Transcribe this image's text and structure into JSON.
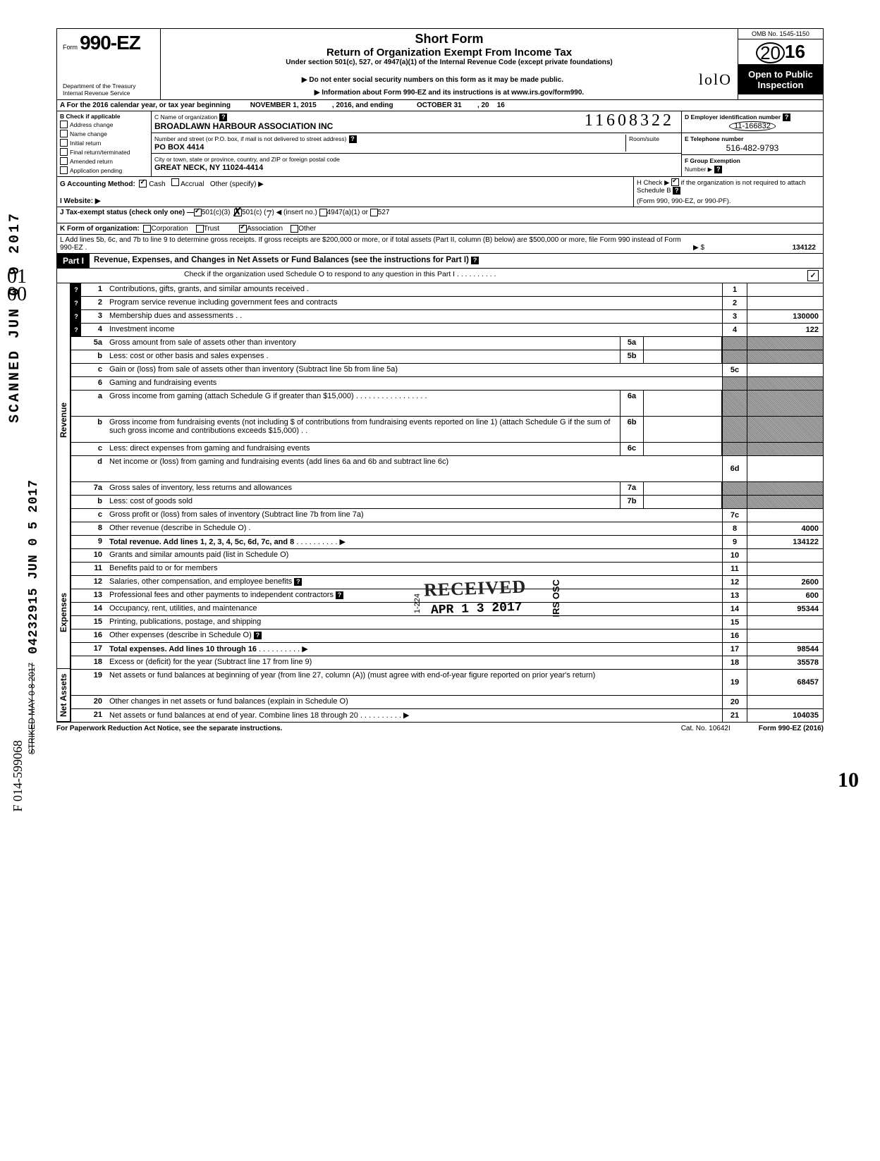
{
  "header": {
    "form_prefix": "Form",
    "form_number": "990-EZ",
    "dept1": "Department of the Treasury",
    "dept2": "Internal Revenue Service",
    "title_main": "Short Form",
    "title_sub": "Return of Organization Exempt From Income Tax",
    "section_note": "Under section 501(c), 527, or 4947(a)(1) of the Internal Revenue Code (except private foundations)",
    "ssn_note": "▶ Do not enter social security numbers on this form as it may be made public.",
    "info_note": "▶ Information about Form 990-EZ and its instructions is at www.irs.gov/form990.",
    "hand_initials": "lolO",
    "omb": "OMB No. 1545-1150",
    "year_prefix": "20",
    "year_suffix": "16",
    "open_public1": "Open to Public",
    "open_public2": "Inspection"
  },
  "row_a": {
    "prefix": "A  For the 2016 calendar year, or tax year beginning",
    "begin": "NOVEMBER 1, 2015",
    "mid": ", 2016, and ending",
    "end_month": "OCTOBER 31",
    "end_mid": ", 20",
    "end_year": "16"
  },
  "col_b": {
    "header": "B  Check if applicable",
    "opts": [
      "Address change",
      "Name change",
      "Initial return",
      "Final return/terminated",
      "Amended return",
      "Application pending"
    ]
  },
  "col_c": {
    "label_name": "C  Name of organization",
    "name": "BROADLAWN HARBOUR ASSOCIATION INC",
    "hand_num": "11608322",
    "label_addr": "Number and street (or P.O. box, if mail is not delivered to street address)",
    "room_label": "Room/suite",
    "addr": "PO BOX 4414",
    "label_city": "City or town, state or province, country, and ZIP or foreign postal code",
    "city": "GREAT NECK, NY 11024-4414"
  },
  "col_d": {
    "label": "D Employer identification number",
    "ein": "11-166832"
  },
  "col_e": {
    "label": "E Telephone number",
    "phone": "516-482-9793"
  },
  "col_f": {
    "label": "F Group Exemption",
    "label2": "Number ▶"
  },
  "row_g": {
    "label": "G  Accounting Method:",
    "cash": "Cash",
    "accrual": "Accrual",
    "other": "Other (specify) ▶"
  },
  "row_h": {
    "text1": "H Check ▶",
    "text2": "if the organization is not required to attach Schedule B",
    "text3": "(Form 990, 990-EZ, or 990-PF)."
  },
  "row_i": {
    "label": "I  Website: ▶"
  },
  "row_j": {
    "label": "J  Tax-exempt status (check only one) —",
    "o1": "501(c)(3)",
    "o2": "501(c) (",
    "o2b": ") ◀ (insert no.)",
    "o3": "4947(a)(1) or",
    "o4": "527"
  },
  "row_k": {
    "label": "K  Form of organization:",
    "o1": "Corporation",
    "o2": "Trust",
    "o3": "Association",
    "o4": "Other"
  },
  "row_l": {
    "text": "L  Add lines 5b, 6c, and 7b to line 9 to determine gross receipts. If gross receipts are $200,000 or more, or if total assets (Part II, column (B) below) are $500,000 or more, file Form 990 instead of Form 990-EZ .",
    "arrow": "▶   $",
    "amount": "134122"
  },
  "part1": {
    "badge": "Part I",
    "title": "Revenue, Expenses, and Changes in Net Assets or Fund Balances (see the instructions for Part I)",
    "sub": "Check if the organization used Schedule O to respond to any question in this Part I  .   .   .   .   .   .   .   .   .   .",
    "sub_checked": "✓"
  },
  "sections": {
    "revenue": "Revenue",
    "expenses": "Expenses",
    "netassets": "Net Assets"
  },
  "lines": [
    {
      "h": "?",
      "n": "1",
      "desc": "Contributions, gifts, grants, and similar amounts received .",
      "box": "1",
      "val": ""
    },
    {
      "h": "?",
      "n": "2",
      "desc": "Program service revenue including government fees and contracts",
      "box": "2",
      "val": ""
    },
    {
      "h": "?",
      "n": "3",
      "desc": "Membership dues and assessments .   .",
      "box": "3",
      "val": "130000"
    },
    {
      "h": "?",
      "n": "4",
      "desc": "Investment income",
      "box": "4",
      "val": "122"
    },
    {
      "h": "",
      "n": "5a",
      "desc": "Gross amount from sale of assets other than inventory",
      "inner": "5a",
      "shadeRight": true
    },
    {
      "h": "",
      "n": "b",
      "desc": "Less: cost or other basis and sales expenses .",
      "inner": "5b",
      "shadeRight": true
    },
    {
      "h": "",
      "n": "c",
      "desc": "Gain or (loss) from sale of assets other than inventory (Subtract line 5b from line 5a)",
      "box": "5c",
      "val": ""
    },
    {
      "h": "",
      "n": "6",
      "desc": "Gaming and fundraising events",
      "shadeRight": true,
      "noBox": true
    },
    {
      "h": "",
      "n": "a",
      "desc": "Gross income from gaming (attach Schedule G if greater than $15,000) .   .   .   .   .   .   .   .   .   .   .   .   .   .   .   .   .",
      "inner": "6a",
      "shadeRight": true,
      "tall": true
    },
    {
      "h": "",
      "n": "b",
      "desc": "Gross income from fundraising events (not including  $                     of contributions from fundraising events reported on line 1) (attach Schedule G if the sum of such gross income and contributions exceeds $15,000) .   .",
      "inner": "6b",
      "shadeRight": true,
      "tall": true
    },
    {
      "h": "",
      "n": "c",
      "desc": "Less: direct expenses from gaming and fundraising events",
      "inner": "6c",
      "shadeRight": true
    },
    {
      "h": "",
      "n": "d",
      "desc": "Net income or (loss) from gaming and fundraising events (add lines 6a and 6b and subtract line 6c)",
      "box": "6d",
      "val": "",
      "tall": true
    },
    {
      "h": "",
      "n": "7a",
      "desc": "Gross sales of inventory, less returns and allowances",
      "inner": "7a",
      "shadeRight": true
    },
    {
      "h": "",
      "n": "b",
      "desc": "Less: cost of goods sold",
      "inner": "7b",
      "shadeRight": true
    },
    {
      "h": "",
      "n": "c",
      "desc": "Gross profit or (loss) from sales of inventory (Subtract line 7b from line 7a)",
      "box": "7c",
      "val": ""
    },
    {
      "h": "",
      "n": "8",
      "desc": "Other revenue (describe in Schedule O) .",
      "box": "8",
      "val": "4000"
    },
    {
      "h": "",
      "n": "9",
      "desc": "Total revenue. Add lines 1, 2, 3, 4, 5c, 6d, 7c, and 8",
      "box": "9",
      "val": "134122",
      "bold": true,
      "arrow": true
    }
  ],
  "expense_lines": [
    {
      "n": "10",
      "desc": "Grants and similar amounts paid (list in Schedule O)",
      "box": "10",
      "val": ""
    },
    {
      "n": "11",
      "desc": "Benefits paid to or for members",
      "box": "11",
      "val": ""
    },
    {
      "n": "12",
      "desc": "Salaries, other compensation, and employee benefits",
      "box": "12",
      "val": "2600",
      "q": true
    },
    {
      "n": "13",
      "desc": "Professional fees and other payments to independent contractors",
      "box": "13",
      "val": "600",
      "q": true
    },
    {
      "n": "14",
      "desc": "Occupancy, rent, utilities, and maintenance",
      "box": "14",
      "val": "95344"
    },
    {
      "n": "15",
      "desc": "Printing, publications, postage, and shipping",
      "box": "15",
      "val": ""
    },
    {
      "n": "16",
      "desc": "Other expenses (describe in Schedule O)",
      "box": "16",
      "val": "",
      "q": true
    },
    {
      "n": "17",
      "desc": "Total expenses. Add lines 10 through 16",
      "box": "17",
      "val": "98544",
      "bold": true,
      "arrow": true
    }
  ],
  "netasset_lines": [
    {
      "n": "18",
      "desc": "Excess or (deficit) for the year (Subtract line 17 from line 9)",
      "box": "18",
      "val": "35578"
    },
    {
      "n": "19",
      "desc": "Net assets or fund balances at beginning of year (from line 27, column (A)) (must agree with end-of-year figure reported on prior year's return)",
      "box": "19",
      "val": "68457",
      "tall": true
    },
    {
      "n": "20",
      "desc": "Other changes in net assets or fund balances (explain in Schedule O)",
      "box": "20",
      "val": ""
    },
    {
      "n": "21",
      "desc": "Net assets or fund balances at end of year. Combine lines 18 through 20",
      "box": "21",
      "val": "104035",
      "arrow": true
    }
  ],
  "stamps": {
    "received": "RECEIVED",
    "date": "APR 1 3 2017",
    "irsosc": "IRS OSC",
    "side224": "1-224"
  },
  "footer": {
    "left": "For Paperwork Reduction Act Notice, see the separate instructions.",
    "mid": "Cat. No. 10642I",
    "right": "Form 990-EZ (2016)"
  },
  "margins": {
    "vert1": "SCANNED JUN 0 9 2017",
    "vert2": "04232915 JUN 0 5 2017",
    "hand_strike": "STRIKED MAY 0 8 2017",
    "hand_f": "F 014-599068",
    "hand_01_00": "01\n00",
    "hand_10": "10"
  }
}
